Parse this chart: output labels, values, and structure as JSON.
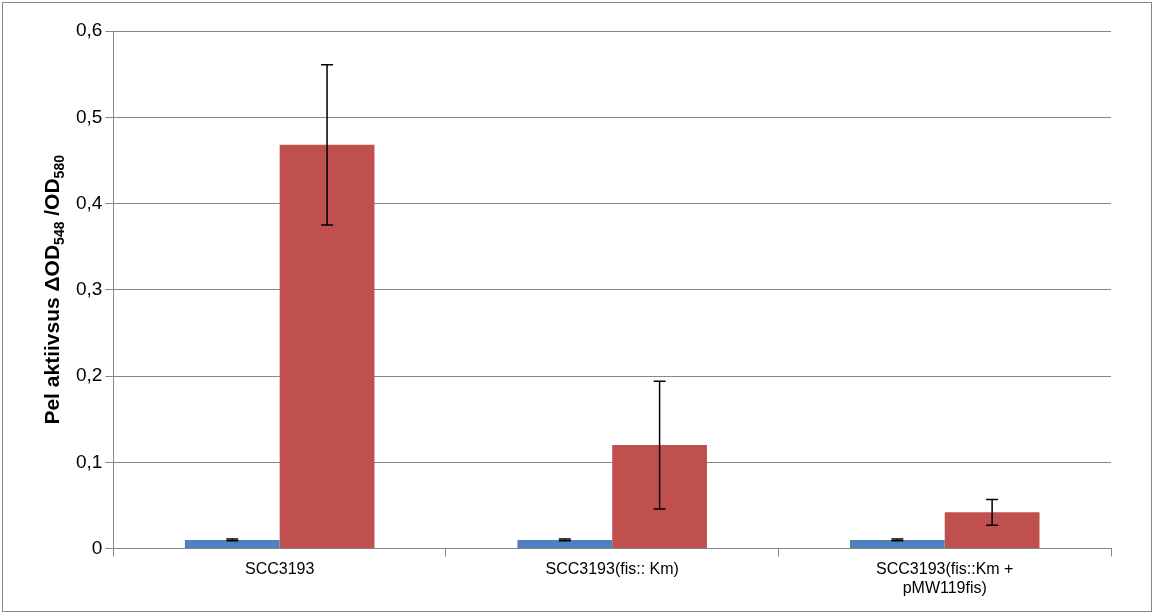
{
  "chart_data": {
    "type": "bar",
    "ylabel": "Pel aktiivsus ΔOD$_{548}$ /OD$_{580}$",
    "categories": [
      "SCC3193",
      "SCC3193(fis:: Km)",
      "SCC3193(fis::Km + pMW119fis)"
    ],
    "series": [
      {
        "color": "#4f81bd",
        "values": [
          0.01,
          0.01,
          0.01
        ],
        "errors": [
          0.001,
          0.001,
          0.001
        ]
      },
      {
        "color": "#c0504d",
        "values": [
          0.468,
          0.12,
          0.042
        ],
        "errors": [
          0.093,
          0.074,
          0.015
        ]
      }
    ],
    "ylim": [
      0,
      0.6
    ],
    "yticks": [
      {
        "value": 0,
        "label": "0"
      },
      {
        "value": 0.1,
        "label": "0,1"
      },
      {
        "value": 0.2,
        "label": "0,2"
      },
      {
        "value": 0.3,
        "label": "0,3"
      },
      {
        "value": 0.4,
        "label": "0,4"
      },
      {
        "value": 0.5,
        "label": "0,5"
      },
      {
        "value": 0.6,
        "label": "0,6"
      }
    ],
    "grid": "y",
    "legend": false
  }
}
